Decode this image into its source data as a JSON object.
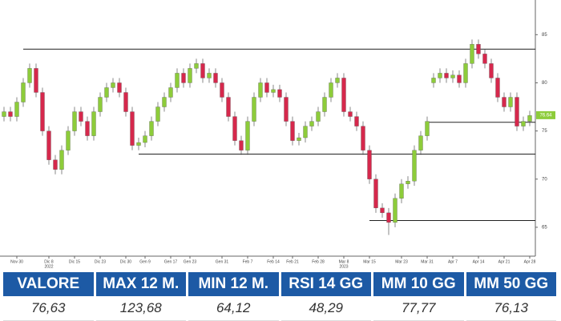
{
  "chart_data": {
    "type": "candlestick",
    "categories": [
      null,
      null,
      "Nov 30",
      null,
      null,
      null,
      null,
      "Dic 8",
      null,
      null,
      null,
      "Dic 15",
      null,
      null,
      null,
      "Dic 23",
      null,
      null,
      null,
      "Dic 30",
      null,
      null,
      "Gen 9",
      null,
      null,
      null,
      "Gen 17",
      null,
      null,
      "Gen 23",
      null,
      null,
      null,
      null,
      "Gen 31",
      null,
      null,
      null,
      "Feb 7",
      null,
      null,
      null,
      "Feb 14",
      null,
      null,
      "Feb 21",
      null,
      null,
      null,
      "Feb 28",
      null,
      null,
      null,
      "Mar 8",
      null,
      null,
      null,
      "Mar 15",
      null,
      null,
      null,
      null,
      "Mar 23",
      null,
      null,
      null,
      "Mar 31",
      null,
      null,
      null,
      "Apr 7",
      null,
      null,
      null,
      "Apr 14",
      null,
      null,
      null,
      "Apr 21",
      null,
      null,
      null,
      "Apr 28"
    ],
    "year_labels": [
      {
        "category": "Dic 8",
        "label": "2022"
      },
      {
        "category": "Mar 8",
        "label": "2023"
      }
    ],
    "open": [
      76.5,
      77,
      76.5,
      78,
      80,
      81.5,
      79,
      75,
      72,
      71,
      73,
      75,
      77,
      76,
      74.5,
      77,
      78.5,
      79.5,
      80,
      79,
      77,
      73.5,
      73.8,
      74.5,
      76,
      77.5,
      78.5,
      79.5,
      81,
      80,
      81.5,
      82,
      80.5,
      81,
      80,
      78.5,
      76.5,
      74,
      73,
      76,
      78.5,
      80,
      79,
      79.3,
      78.5,
      76,
      74,
      74.3,
      75.5,
      76,
      77,
      78.5,
      80,
      80.5,
      77,
      76.5,
      75.5,
      73,
      70,
      67,
      66.5,
      65.5,
      68,
      69.5,
      69.8,
      73,
      74.5,
      80,
      80.5,
      81,
      80.5,
      80.8,
      80,
      82,
      84,
      83,
      82,
      80.5,
      78.5,
      77.5,
      78.5,
      75.5,
      76
    ],
    "high": [
      77.5,
      77.5,
      78.5,
      80.5,
      82,
      82,
      79.5,
      75.5,
      72.5,
      73.5,
      75.5,
      77.5,
      77.5,
      76.5,
      77.5,
      79,
      80,
      80.5,
      80.5,
      79.5,
      77.5,
      74.3,
      75,
      76.5,
      78,
      79,
      80,
      81.5,
      81.5,
      82,
      82.5,
      82.5,
      81.5,
      81.5,
      80.5,
      79,
      77,
      74.5,
      76.5,
      79,
      80.5,
      80.5,
      79.8,
      79.8,
      79,
      76.5,
      74.8,
      76,
      76.5,
      77.5,
      79,
      80.5,
      81,
      81,
      77.5,
      77,
      76,
      73.5,
      70.5,
      67.5,
      67,
      68.5,
      70,
      70.3,
      73.5,
      75,
      76.5,
      81,
      81.5,
      81.5,
      81.3,
      81.3,
      82.5,
      84.5,
      84.5,
      83.5,
      82.5,
      81,
      79,
      79,
      79,
      76.5,
      77.1
    ],
    "low": [
      76,
      76,
      76,
      77.5,
      79.5,
      78.5,
      74.5,
      71.5,
      70.5,
      70.5,
      72.5,
      74.5,
      75.5,
      74,
      74,
      76.5,
      78,
      79,
      78.5,
      76.5,
      73,
      73,
      73.3,
      74,
      75.5,
      77,
      78,
      79,
      79.5,
      79.5,
      81,
      80,
      80,
      79.5,
      78,
      76,
      73.5,
      72.5,
      72.5,
      75.5,
      78,
      78.5,
      78.5,
      78,
      75.5,
      73.5,
      73.5,
      73.8,
      75,
      75.5,
      76.5,
      78,
      79.5,
      76.5,
      76,
      75,
      72.5,
      69.5,
      66.5,
      66,
      64.2,
      65,
      67.5,
      69,
      69.3,
      72.5,
      74,
      79.5,
      80,
      80,
      80,
      79.5,
      79.5,
      81.5,
      82.5,
      81.5,
      80,
      78,
      77,
      77,
      75,
      75,
      75.5
    ],
    "close": [
      77,
      76.5,
      78,
      80,
      81.5,
      79,
      75,
      72,
      71,
      73,
      75,
      77,
      76,
      74.5,
      77,
      78.5,
      79.5,
      80,
      79,
      77,
      73.5,
      73.8,
      74.5,
      76,
      77.5,
      78.5,
      79.5,
      81,
      80,
      81.5,
      82,
      80.5,
      81,
      80,
      78.5,
      76.5,
      74,
      73,
      76,
      78.5,
      80,
      79,
      79.3,
      78.5,
      76,
      74,
      74.3,
      75.5,
      76,
      77,
      78.5,
      80,
      80.5,
      77,
      76.5,
      75.5,
      73,
      70,
      67,
      66.5,
      65.5,
      68,
      69.5,
      69.8,
      73,
      74.5,
      76,
      80.5,
      81,
      80.5,
      80.8,
      80,
      82,
      84,
      83,
      82,
      80.5,
      78.5,
      77.5,
      78.5,
      75.5,
      76,
      76.6
    ],
    "up_color": "#8dcc3a",
    "down_color": "#d6284c",
    "levels": [
      {
        "value": 83.5,
        "start": 3
      },
      {
        "value": 72.6,
        "start": 21
      },
      {
        "value": 75.9,
        "start": 66
      },
      {
        "value": 65.7,
        "start": 57
      }
    ],
    "last_price": 76.64,
    "ylim": [
      62,
      88.6
    ],
    "yticks": [
      65,
      70,
      75,
      80,
      85
    ]
  },
  "table": {
    "headers": [
      "VALORE",
      "MAX 12 M.",
      "MIN 12 M.",
      "RSI 14 GG",
      "MM 10 GG",
      "MM 50 GG"
    ],
    "rows": [
      [
        "76,63",
        "123,68",
        "64,12",
        "48,29",
        "77,77",
        "76,13"
      ]
    ]
  }
}
